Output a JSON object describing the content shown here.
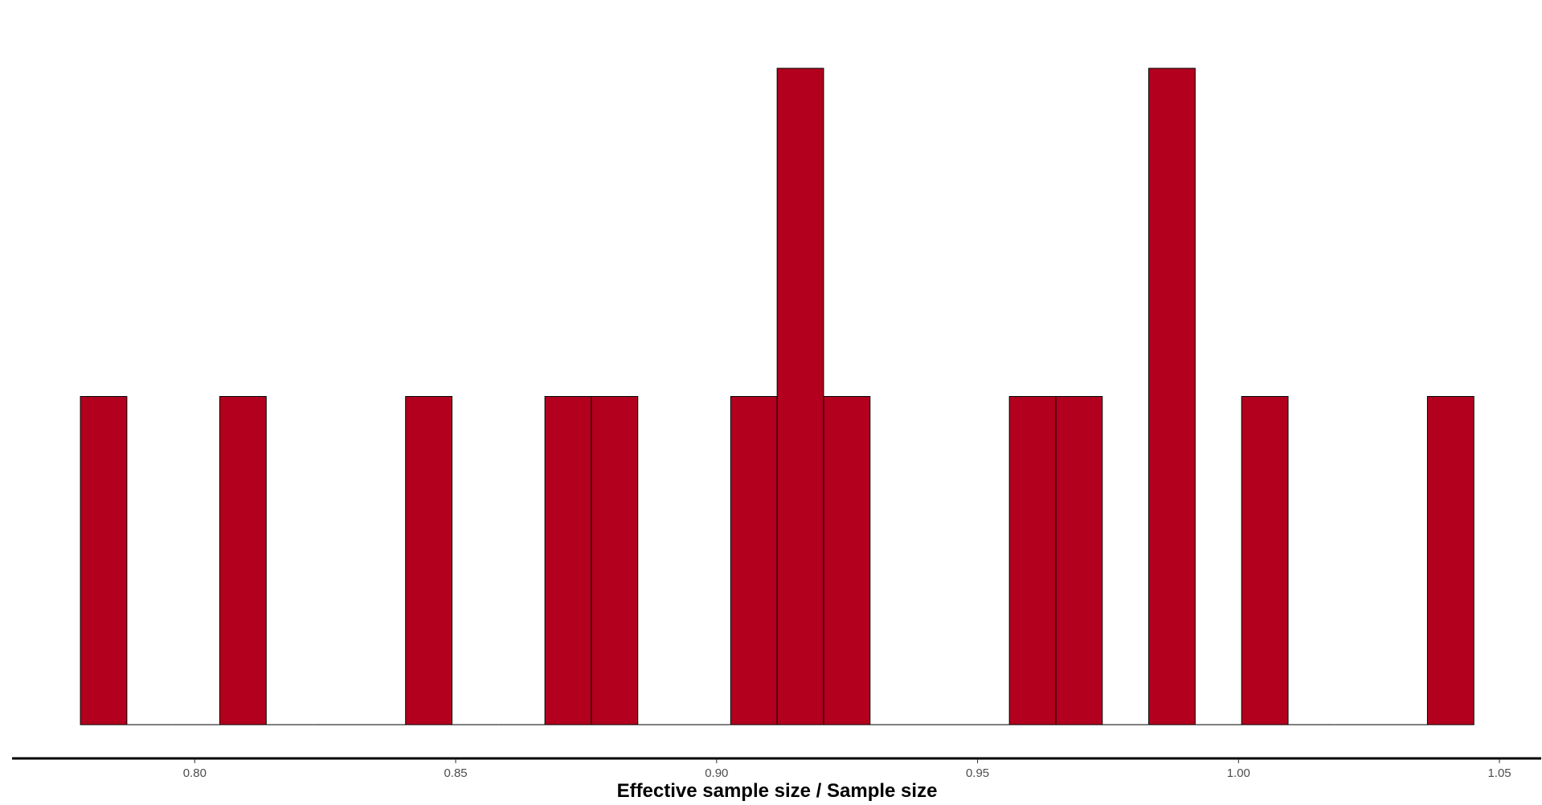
{
  "chart_data": {
    "type": "bar",
    "title": "",
    "xlabel": "Effective sample size / Sample size",
    "ylabel": "",
    "xlim": [
      0.765,
      1.058
    ],
    "ylim": [
      0,
      2.12
    ],
    "x_ticks": [
      0.8,
      0.85,
      0.9,
      0.95,
      1.0,
      1.05
    ],
    "x_tick_labels": [
      "0.80",
      "0.85",
      "0.90",
      "0.95",
      "1.00",
      "1.05"
    ],
    "bin_width": 0.0089,
    "bins": [
      {
        "x0": 0.7781,
        "count": 1
      },
      {
        "x0": 0.787,
        "count": 0
      },
      {
        "x0": 0.7959,
        "count": 0
      },
      {
        "x0": 0.8048,
        "count": 1
      },
      {
        "x0": 0.8137,
        "count": 0
      },
      {
        "x0": 0.8226,
        "count": 0
      },
      {
        "x0": 0.8315,
        "count": 0
      },
      {
        "x0": 0.8404,
        "count": 1
      },
      {
        "x0": 0.8493,
        "count": 0
      },
      {
        "x0": 0.8582,
        "count": 0
      },
      {
        "x0": 0.8671,
        "count": 1
      },
      {
        "x0": 0.876,
        "count": 1
      },
      {
        "x0": 0.8849,
        "count": 0
      },
      {
        "x0": 0.8938,
        "count": 0
      },
      {
        "x0": 0.9027,
        "count": 1
      },
      {
        "x0": 0.9116,
        "count": 2
      },
      {
        "x0": 0.9205,
        "count": 1
      },
      {
        "x0": 0.9294,
        "count": 0
      },
      {
        "x0": 0.9383,
        "count": 0
      },
      {
        "x0": 0.9472,
        "count": 0
      },
      {
        "x0": 0.9561,
        "count": 1
      },
      {
        "x0": 0.965,
        "count": 1
      },
      {
        "x0": 0.9739,
        "count": 0
      },
      {
        "x0": 0.9828,
        "count": 2
      },
      {
        "x0": 0.9917,
        "count": 0
      },
      {
        "x0": 1.0006,
        "count": 1
      },
      {
        "x0": 1.0095,
        "count": 0
      },
      {
        "x0": 1.0184,
        "count": 0
      },
      {
        "x0": 1.0273,
        "count": 0
      },
      {
        "x0": 1.0362,
        "count": 1
      }
    ],
    "grid": false,
    "legend": "none",
    "colors": {
      "bar_fill": "#b2001e",
      "bar_outline": "#000000",
      "axis_line": "#000000",
      "tick_text": "#4d4d4d"
    }
  }
}
